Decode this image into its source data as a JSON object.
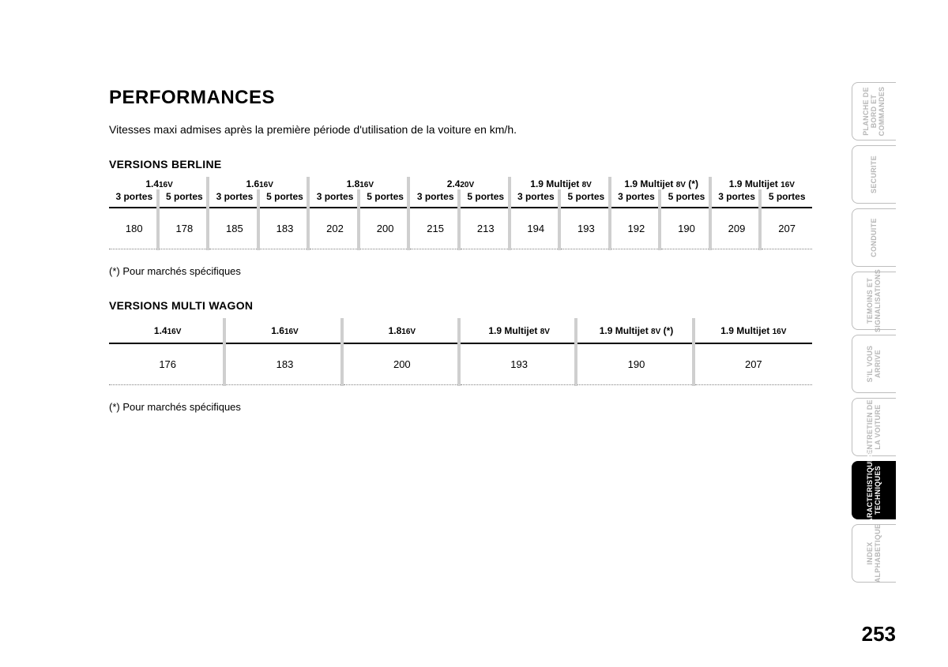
{
  "title": "PERFORMANCES",
  "intro": "Vitesses maxi admises après la première période d'utilisation de la voiture en km/h.",
  "berline": {
    "section_title": "VERSIONS BERLINE",
    "engines": [
      "1.4",
      "1.6",
      "1.8",
      "2.4",
      "1.9 Multijet ",
      "1.9 Multijet ",
      "1.9 Multijet "
    ],
    "engine_sv": [
      "16V",
      "16V",
      "16V",
      "20V",
      "8V",
      "8V",
      "16V"
    ],
    "engine_suffix": [
      "",
      "",
      "",
      "",
      "",
      " (*)",
      ""
    ],
    "doors": [
      "3 portes",
      "5 portes",
      "3 portes",
      "5 portes",
      "3 portes",
      "5 portes",
      "3 portes",
      "5 portes",
      "3 portes",
      "5 portes",
      "3 portes",
      "5 portes",
      "3 portes",
      "5 portes"
    ],
    "values": [
      "180",
      "178",
      "185",
      "183",
      "202",
      "200",
      "215",
      "213",
      "194",
      "193",
      "192",
      "190",
      "209",
      "207"
    ],
    "footnote": "(*) Pour marchés spécifiques"
  },
  "wagon": {
    "section_title": "VERSIONS MULTI WAGON",
    "engines": [
      "1.4",
      "1.6",
      "1.8",
      "1.9 Multijet ",
      "1.9 Multijet ",
      "1.9 Multijet "
    ],
    "engine_sv": [
      "16V",
      "16V",
      "16V",
      "8V",
      "8V",
      "16V"
    ],
    "engine_suffix": [
      "",
      "",
      "",
      "",
      " (*)",
      ""
    ],
    "values": [
      "176",
      "183",
      "200",
      "193",
      "190",
      "207"
    ],
    "footnote": "(*) Pour marchés spécifiques"
  },
  "sidetabs": [
    {
      "label": "PLANCHE DE\nBORD ET\nCOMMANDES",
      "active": false
    },
    {
      "label": "SECURITE",
      "active": false
    },
    {
      "label": "CONDUITE",
      "active": false
    },
    {
      "label": "TEMOINS ET\nSIGNALISATIONS",
      "active": false
    },
    {
      "label": "S'IL VOUS\nARRIVE",
      "active": false
    },
    {
      "label": "ENTRETIEN DE\nLA VOITURE",
      "active": false
    },
    {
      "label": "CARACTERISTIQUES\nTECHNIQUES",
      "active": true
    },
    {
      "label": "INDEX\nALPHABETIQUE",
      "active": false
    }
  ],
  "page_number": "253"
}
